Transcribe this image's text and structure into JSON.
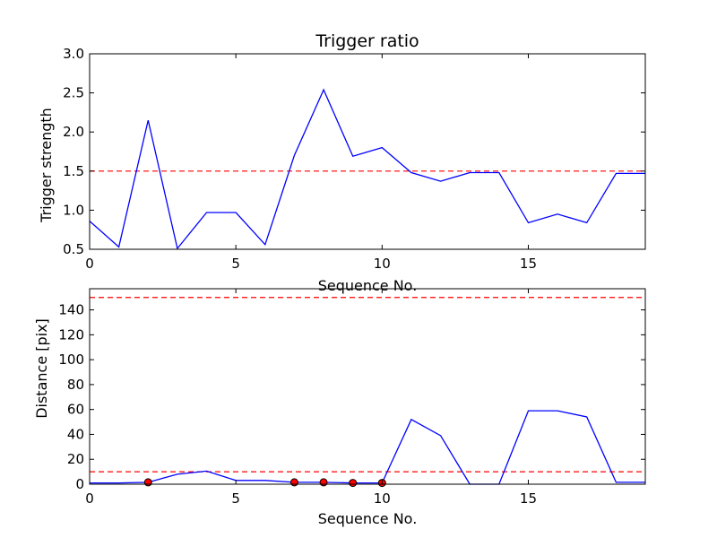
{
  "chart_data": [
    {
      "type": "line",
      "title": "Trigger ratio",
      "xlabel": "Sequence No.",
      "ylabel": "Trigger strength",
      "xlim": [
        0,
        19
      ],
      "ylim": [
        0.5,
        3.0
      ],
      "xticks": [
        0,
        5,
        10,
        15
      ],
      "xtick_labels": [
        "0",
        "5",
        "10",
        "15"
      ],
      "yticks": [
        0.5,
        1.0,
        1.5,
        2.0,
        2.5,
        3.0
      ],
      "ytick_labels": [
        "0.5",
        "1.0",
        "1.5",
        "2.0",
        "2.5",
        "3.0"
      ],
      "grid": false,
      "line_color": "#0000ff",
      "threshold_color": "#ff0000",
      "series": [
        {
          "x": [
            0,
            1,
            2,
            3,
            4,
            5,
            6,
            7,
            8,
            9,
            10,
            11,
            12,
            13,
            14,
            15,
            16,
            17,
            18,
            19
          ],
          "values": [
            0.86,
            0.53,
            2.15,
            0.51,
            0.97,
            0.97,
            0.56,
            1.7,
            2.54,
            1.69,
            1.8,
            1.48,
            1.37,
            1.48,
            1.48,
            0.84,
            0.95,
            0.84,
            1.47,
            1.47
          ]
        }
      ],
      "thresholds": [
        1.5
      ]
    },
    {
      "type": "line",
      "title": "",
      "xlabel": "Sequence No.",
      "ylabel": "Distance [pix]",
      "xlim": [
        0,
        19
      ],
      "ylim": [
        0,
        157
      ],
      "xticks": [
        0,
        5,
        10,
        15
      ],
      "xtick_labels": [
        "0",
        "5",
        "10",
        "15"
      ],
      "yticks": [
        0,
        20,
        40,
        60,
        80,
        100,
        120,
        140
      ],
      "ytick_labels": [
        "0",
        "20",
        "40",
        "60",
        "80",
        "100",
        "120",
        "140"
      ],
      "grid": false,
      "line_color": "#0000ff",
      "threshold_color": "#ff0000",
      "marker_color": "#ff0000",
      "series": [
        {
          "x": [
            0,
            1,
            2,
            3,
            4,
            5,
            6,
            7,
            8,
            9,
            10,
            11,
            12,
            13,
            14,
            15,
            16,
            17,
            18,
            19
          ],
          "values": [
            1,
            1,
            1.5,
            8,
            10.5,
            3,
            3,
            1.5,
            1.5,
            1,
            1,
            52,
            39,
            0,
            0,
            59,
            59,
            54,
            1.5,
            1.5
          ]
        }
      ],
      "markers": {
        "x": [
          2,
          7,
          8,
          9,
          10
        ],
        "values": [
          1.5,
          1.5,
          1.5,
          1,
          1
        ]
      },
      "thresholds": [
        10,
        150
      ]
    }
  ]
}
